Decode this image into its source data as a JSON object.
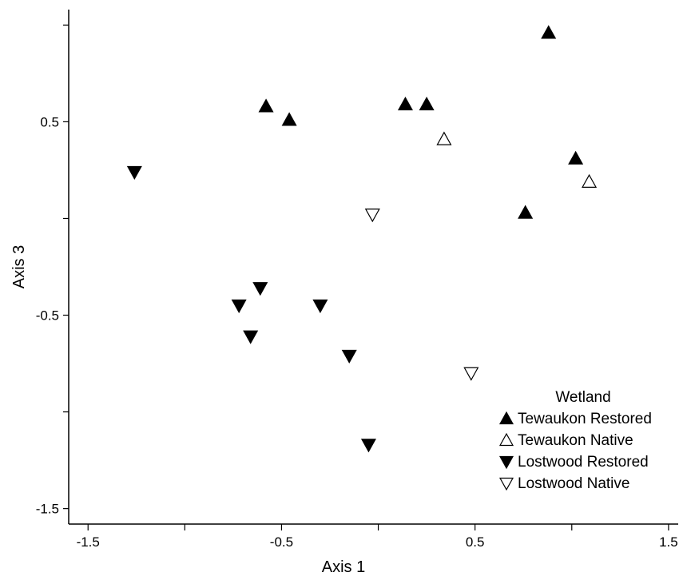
{
  "chart_data": {
    "type": "scatter",
    "title": "",
    "xlabel": "Axis 1",
    "ylabel": "Axis 3",
    "xlim": [
      -1.6,
      1.55
    ],
    "ylim": [
      -1.58,
      1.08
    ],
    "xticks": [
      -1.5,
      -1.0,
      -0.5,
      0.0,
      0.5,
      1.0,
      1.5
    ],
    "xtick_labels": [
      "-1.5",
      "",
      "-0.5",
      "",
      "0.5",
      "",
      "1.5"
    ],
    "yticks": [
      -1.5,
      -1.0,
      -0.5,
      0.0,
      0.5,
      1.0
    ],
    "ytick_labels": [
      "-1.5",
      "",
      "-0.5",
      "",
      "0.5",
      ""
    ],
    "grid": false,
    "legend": {
      "title": "Wetland",
      "placement": "bottom-right"
    },
    "series": [
      {
        "name": "Tewaukon Restored",
        "marker": "triangle-up",
        "filled": true,
        "color": "#000000",
        "points": [
          [
            -0.58,
            0.58
          ],
          [
            -0.46,
            0.51
          ],
          [
            0.14,
            0.59
          ],
          [
            0.25,
            0.59
          ],
          [
            0.88,
            0.96
          ],
          [
            1.02,
            0.31
          ],
          [
            0.76,
            0.03
          ]
        ]
      },
      {
        "name": "Tewaukon Native",
        "marker": "triangle-up",
        "filled": false,
        "color": "#000000",
        "points": [
          [
            0.34,
            0.41
          ],
          [
            1.09,
            0.19
          ]
        ]
      },
      {
        "name": "Lostwood Restored",
        "marker": "triangle-down",
        "filled": true,
        "color": "#000000",
        "points": [
          [
            -1.26,
            0.24
          ],
          [
            -0.61,
            -0.36
          ],
          [
            -0.72,
            -0.45
          ],
          [
            -0.66,
            -0.61
          ],
          [
            -0.3,
            -0.45
          ],
          [
            -0.15,
            -0.71
          ],
          [
            -0.05,
            -1.17
          ]
        ]
      },
      {
        "name": "Lostwood Native",
        "marker": "triangle-down",
        "filled": false,
        "color": "#000000",
        "points": [
          [
            -0.03,
            0.02
          ],
          [
            0.48,
            -0.8
          ]
        ]
      }
    ]
  }
}
